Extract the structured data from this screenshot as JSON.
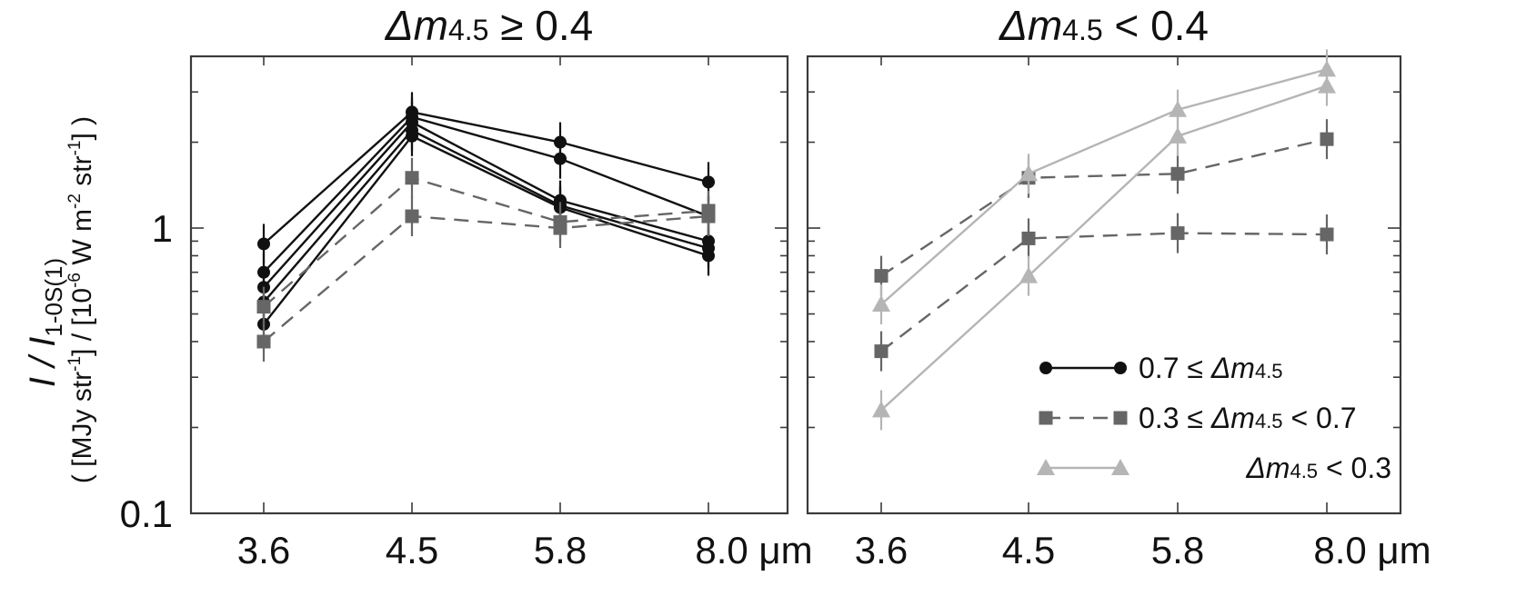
{
  "y_axis": {
    "label_main": "I / I",
    "label_sub": "1-0S(1)",
    "label_units_a": "( [MJy str",
    "label_units_b": "-1",
    "label_units_c": "] / [10",
    "label_units_d": "-6",
    "label_units_e": " W m",
    "label_units_f": "-2",
    "label_units_g": " str",
    "label_units_h": "-1",
    "label_units_i": "] )"
  },
  "legend": {
    "entries": [
      {
        "pre": "0.7 ≤ ",
        "delta": "Δm",
        "sub": "4.5",
        "post": ""
      },
      {
        "pre": "0.3 ≤ ",
        "delta": "Δm",
        "sub": "4.5",
        "post": " < 0.7"
      },
      {
        "pre": "",
        "delta": "Δm",
        "sub": "4.5",
        "post": " < 0.3"
      }
    ]
  },
  "colors": {
    "strong": "#111111",
    "medium": "#666666",
    "weak": "#b5b5b5"
  },
  "chart_data": [
    {
      "type": "line",
      "title_delta": "Δm",
      "title_sub": "4.5",
      "title_rel": " ≥ 0.4",
      "categories": [
        "3.6",
        "4.5",
        "5.8",
        "8.0 μm"
      ],
      "yscale": "log",
      "ylim": [
        0.1,
        4.0
      ],
      "y_tick_labels": [
        "0.1",
        "1"
      ],
      "series": [
        {
          "group": "0.7 ≤ Δm4.5",
          "marker": "circle",
          "values": [
            0.88,
            2.55,
            2.0,
            1.45
          ]
        },
        {
          "group": "0.7 ≤ Δm4.5",
          "marker": "circle",
          "values": [
            0.7,
            2.45,
            1.75,
            1.1
          ]
        },
        {
          "group": "0.7 ≤ Δm4.5",
          "marker": "circle",
          "values": [
            0.62,
            2.35,
            1.25,
            0.9
          ]
        },
        {
          "group": "0.7 ≤ Δm4.5",
          "marker": "circle",
          "values": [
            0.55,
            2.2,
            1.2,
            0.85
          ]
        },
        {
          "group": "0.7 ≤ Δm4.5",
          "marker": "circle",
          "values": [
            0.46,
            2.1,
            1.18,
            0.8
          ]
        },
        {
          "group": "0.3 ≤ Δm4.5 < 0.7",
          "marker": "square",
          "values": [
            0.53,
            1.5,
            1.05,
            1.15
          ]
        },
        {
          "group": "0.3 ≤ Δm4.5 < 0.7",
          "marker": "square",
          "values": [
            0.4,
            1.1,
            1.0,
            1.1
          ]
        }
      ]
    },
    {
      "type": "line",
      "title_delta": "Δm",
      "title_sub": "4.5",
      "title_rel": " < 0.4",
      "categories": [
        "3.6",
        "4.5",
        "5.8",
        "8.0 μm"
      ],
      "yscale": "log",
      "ylim": [
        0.1,
        4.0
      ],
      "series": [
        {
          "group": "0.3 ≤ Δm4.5 < 0.7",
          "marker": "square",
          "values": [
            0.68,
            1.5,
            1.55,
            2.05
          ]
        },
        {
          "group": "0.3 ≤ Δm4.5 < 0.7",
          "marker": "square",
          "values": [
            0.37,
            0.92,
            0.96,
            0.95
          ]
        },
        {
          "group": "Δm4.5 < 0.3",
          "marker": "triangle",
          "values": [
            0.54,
            1.55,
            2.6,
            3.6
          ]
        },
        {
          "group": "Δm4.5 < 0.3",
          "marker": "triangle",
          "values": [
            0.23,
            0.68,
            2.1,
            3.15
          ]
        }
      ]
    }
  ]
}
